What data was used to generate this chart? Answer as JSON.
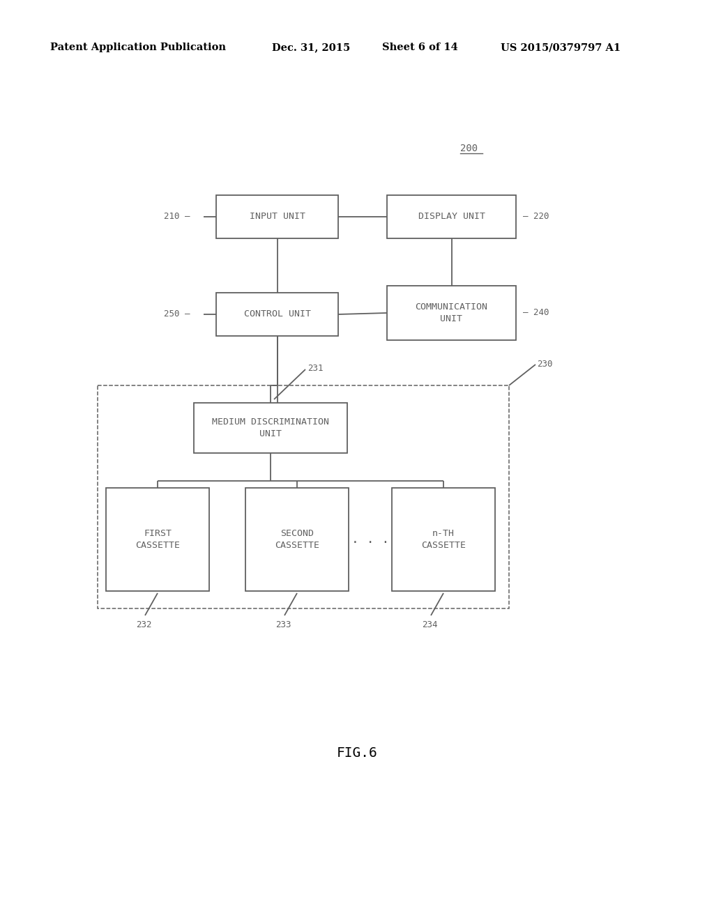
{
  "bg_color": "#ffffff",
  "header_text": "Patent Application Publication",
  "header_date": "Dec. 31, 2015",
  "header_sheet": "Sheet 6 of 14",
  "header_patent": "US 2015/0379797 A1",
  "fig_label": "FIG.6",
  "ref_200": "200",
  "ref_210": "210",
  "ref_220": "220",
  "ref_240": "240",
  "ref_250": "250",
  "ref_230": "230",
  "ref_231": "231",
  "ref_232": "232",
  "ref_233": "233",
  "ref_234": "234",
  "line_color": "#606060",
  "box_edge_color": "#606060",
  "text_color": "#606060",
  "font_size_box": 9.5,
  "font_size_header": 10.5,
  "font_size_ref": 9,
  "font_size_fig": 14,
  "font_size_200": 10
}
